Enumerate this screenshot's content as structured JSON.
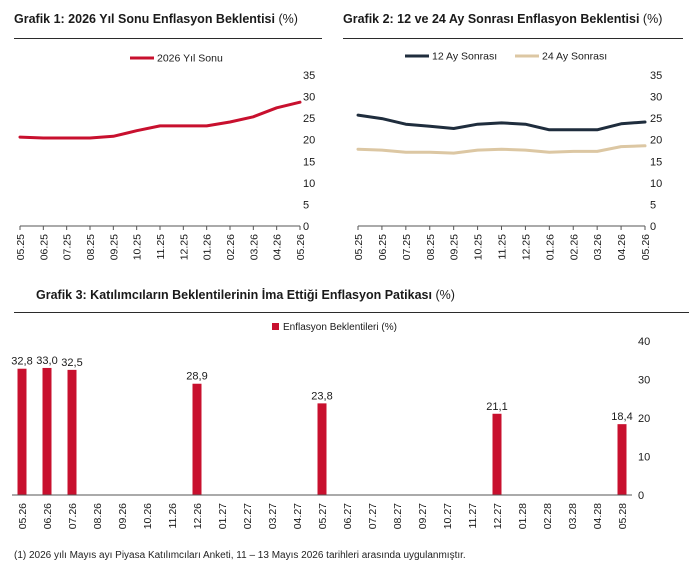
{
  "charts": {
    "c1": {
      "title": "Grafik 1: 2026 Yıl Sonu Enflasyon Beklentisi",
      "unit": "(%)"
    },
    "c2": {
      "title": "Grafik 2: 12 ve 24 Ay Sonrası Enflasyon Beklentisi",
      "unit": "(%)"
    },
    "c3": {
      "title": "Grafik 3: Katılımcıların Beklentilerinin İma Ettiği Enflasyon Patikası",
      "unit": "(%)"
    }
  },
  "footnote": "(1)    2026 yılı Mayıs ayı Piyasa Katılımcıları Anketi, 11 – 13 Mayıs 2026 tarihleri arasında uygulanmıştır.",
  "colors": {
    "red": "#c8102e",
    "navy": "#1f2d3d",
    "beige": "#dcc7a3",
    "axis": "#555555"
  },
  "chart_data": [
    {
      "type": "line",
      "title": "Grafik 1: 2026 Yıl Sonu Enflasyon Beklentisi (%)",
      "x": [
        "05.25",
        "06.25",
        "07.25",
        "08.25",
        "09.25",
        "10.25",
        "11.25",
        "12.25",
        "01.26",
        "02.26",
        "03.26",
        "04.26",
        "05.26"
      ],
      "series": [
        {
          "name": "2026 Yıl Sonu",
          "color": "#c8102e",
          "values": [
            20.6,
            20.4,
            20.4,
            20.4,
            20.8,
            22.1,
            23.2,
            23.2,
            23.2,
            24.1,
            25.3,
            27.4,
            28.7
          ]
        }
      ],
      "ylim": [
        0,
        35
      ],
      "yticks": [
        0,
        5,
        10,
        15,
        20,
        25,
        30,
        35
      ],
      "legend": "top-center",
      "grid": false
    },
    {
      "type": "line",
      "title": "Grafik 2: 12 ve 24 Ay Sonrası Enflasyon Beklentisi (%)",
      "x": [
        "05.25",
        "06.25",
        "07.25",
        "08.25",
        "09.25",
        "10.25",
        "11.25",
        "12.25",
        "01.26",
        "02.26",
        "03.26",
        "04.26",
        "05.26"
      ],
      "series": [
        {
          "name": "12 Ay Sonrası",
          "color": "#1f2d3d",
          "values": [
            25.7,
            24.9,
            23.6,
            23.1,
            22.6,
            23.6,
            23.9,
            23.6,
            22.3,
            22.3,
            22.3,
            23.7,
            24.1
          ]
        },
        {
          "name": "24 Ay Sonrası",
          "color": "#dcc7a3",
          "values": [
            17.8,
            17.6,
            17.1,
            17.1,
            16.9,
            17.6,
            17.8,
            17.6,
            17.1,
            17.3,
            17.3,
            18.4,
            18.6
          ]
        }
      ],
      "ylim": [
        0,
        35
      ],
      "yticks": [
        0,
        5,
        10,
        15,
        20,
        25,
        30,
        35
      ],
      "legend": "top-center",
      "grid": false
    },
    {
      "type": "bar",
      "title": "Grafik 3: Katılımcıların Beklentilerinin İma Ettiği Enflasyon Patikası (%)",
      "categories": [
        "05.26",
        "06.26",
        "07.26",
        "08.26",
        "09.26",
        "10.26",
        "11.26",
        "12.26",
        "01.27",
        "02.27",
        "03.27",
        "04.27",
        "05.27",
        "06.27",
        "07.27",
        "08.27",
        "09.27",
        "10.27",
        "11.27",
        "12.27",
        "01.28",
        "02.28",
        "03.28",
        "04.28",
        "05.28"
      ],
      "series": [
        {
          "name": "Enflasyon Beklentileri (%)",
          "color": "#c8102e",
          "values": [
            32.8,
            33.0,
            32.5,
            null,
            null,
            null,
            null,
            28.9,
            null,
            null,
            null,
            null,
            23.8,
            null,
            null,
            null,
            null,
            null,
            null,
            21.1,
            null,
            null,
            null,
            null,
            18.4
          ]
        }
      ],
      "data_labels": [
        "32,8",
        "33,0",
        "32,5",
        "",
        "",
        "",
        "",
        "28,9",
        "",
        "",
        "",
        "",
        "23,8",
        "",
        "",
        "",
        "",
        "",
        "",
        "21,1",
        "",
        "",
        "",
        "",
        "18,4"
      ],
      "ylim": [
        0,
        40
      ],
      "yticks": [
        0,
        10,
        20,
        30,
        40
      ],
      "legend": "top-center",
      "grid": false
    }
  ]
}
